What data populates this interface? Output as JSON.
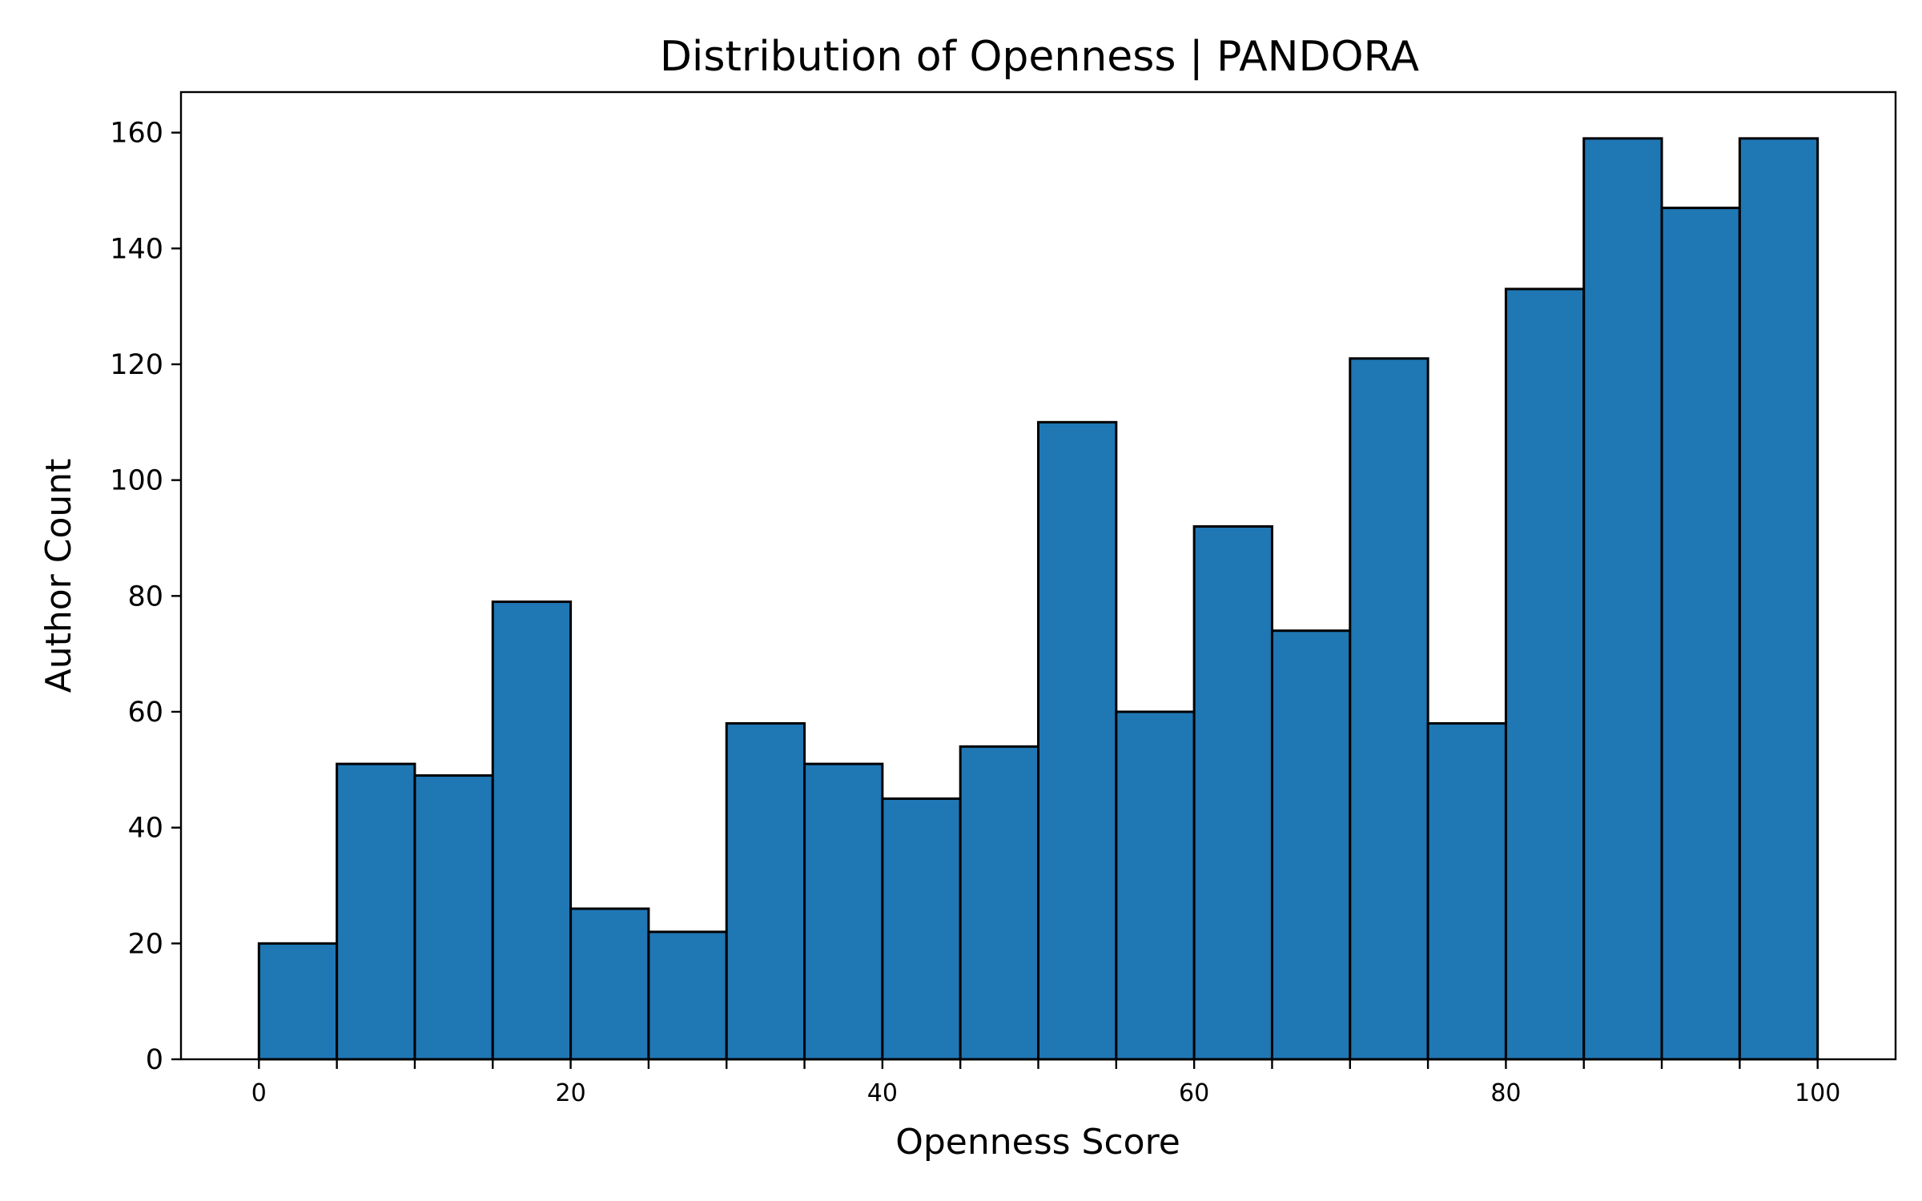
{
  "chart_data": {
    "type": "bar",
    "title": "Distribution of Openness | PANDORA",
    "xlabel": "Openness Score",
    "ylabel": "Author Count",
    "bin_edges": [
      0,
      5,
      10,
      15,
      20,
      25,
      30,
      35,
      40,
      45,
      50,
      55,
      60,
      65,
      70,
      75,
      80,
      85,
      90,
      95,
      100
    ],
    "values": [
      20,
      51,
      49,
      79,
      26,
      22,
      58,
      51,
      45,
      54,
      110,
      60,
      92,
      74,
      121,
      58,
      133,
      159,
      147,
      159
    ],
    "xlim": [
      -5,
      105
    ],
    "ylim": [
      0,
      167
    ],
    "xticks": [
      0,
      20,
      40,
      60,
      80,
      100
    ],
    "xticks_minor": [
      5,
      10,
      15,
      25,
      30,
      35,
      45,
      50,
      55,
      65,
      70,
      75,
      85,
      90,
      95
    ],
    "yticks": [
      0,
      20,
      40,
      60,
      80,
      100,
      120,
      140,
      160
    ],
    "grid": false,
    "colors": {
      "bar_fill": "#1f77b4",
      "bar_edge": "#000000"
    }
  }
}
